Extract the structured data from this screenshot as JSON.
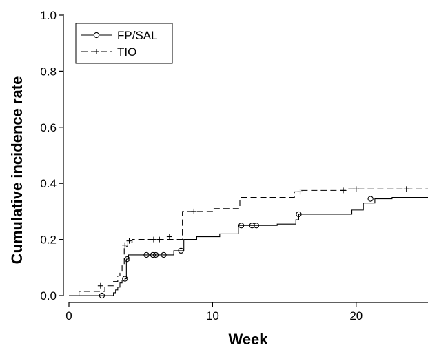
{
  "chart_data": {
    "type": "line",
    "xlabel": "Week",
    "ylabel": "Cumulative incidence rate",
    "xlim": [
      0,
      25
    ],
    "ylim": [
      0,
      1.0
    ],
    "x_ticks": [
      "0",
      "10",
      "20"
    ],
    "x_tick_values": [
      0,
      10,
      20
    ],
    "y_ticks": [
      "0.0",
      "0.2",
      "0.4",
      "0.6",
      "0.8",
      "1.0"
    ],
    "y_tick_values": [
      0,
      0.2,
      0.4,
      0.6,
      0.8,
      1.0
    ],
    "grid": false,
    "legend_position": "top-left",
    "series": [
      {
        "name": "FP/SAL",
        "line_style": "solid",
        "marker": "circle",
        "color": "#000000",
        "steps": [
          [
            0,
            0
          ],
          [
            3.1,
            0.01
          ],
          [
            3.25,
            0.02
          ],
          [
            3.4,
            0.03
          ],
          [
            3.55,
            0.045
          ],
          [
            3.7,
            0.055
          ],
          [
            3.9,
            0.06
          ],
          [
            4.0,
            0.13
          ],
          [
            4.15,
            0.145
          ],
          [
            7.3,
            0.16
          ],
          [
            8.0,
            0.2
          ],
          [
            8.9,
            0.21
          ],
          [
            10.5,
            0.22
          ],
          [
            11.8,
            0.25
          ],
          [
            14.5,
            0.255
          ],
          [
            15.8,
            0.27
          ],
          [
            16.0,
            0.29
          ],
          [
            19.7,
            0.305
          ],
          [
            20.5,
            0.33
          ],
          [
            21.3,
            0.345
          ],
          [
            22.5,
            0.35
          ],
          [
            25,
            0.35
          ]
        ],
        "censored": [
          [
            2.3,
            0.0
          ],
          [
            3.9,
            0.06
          ],
          [
            4.05,
            0.13
          ],
          [
            5.4,
            0.145
          ],
          [
            5.85,
            0.145
          ],
          [
            6.05,
            0.145
          ],
          [
            6.6,
            0.145
          ],
          [
            7.8,
            0.16
          ],
          [
            12.0,
            0.25
          ],
          [
            12.75,
            0.25
          ],
          [
            13.05,
            0.25
          ],
          [
            16.0,
            0.29
          ],
          [
            21.0,
            0.345
          ]
        ]
      },
      {
        "name": "TIO",
        "line_style": "dashed",
        "marker": "plus",
        "color": "#000000",
        "steps": [
          [
            0,
            0
          ],
          [
            0.7,
            0.015
          ],
          [
            2.5,
            0.035
          ],
          [
            3.1,
            0.05
          ],
          [
            3.4,
            0.07
          ],
          [
            3.55,
            0.08
          ],
          [
            3.7,
            0.11
          ],
          [
            3.85,
            0.175
          ],
          [
            4.1,
            0.19
          ],
          [
            4.4,
            0.2
          ],
          [
            7.9,
            0.3
          ],
          [
            10.1,
            0.31
          ],
          [
            11.9,
            0.35
          ],
          [
            15.7,
            0.37
          ],
          [
            16.2,
            0.375
          ],
          [
            19.3,
            0.38
          ],
          [
            25,
            0.38
          ]
        ],
        "censored": [
          [
            2.2,
            0.035
          ],
          [
            3.9,
            0.18
          ],
          [
            4.2,
            0.195
          ],
          [
            5.9,
            0.2
          ],
          [
            6.3,
            0.2
          ],
          [
            7.0,
            0.21
          ],
          [
            8.7,
            0.3
          ],
          [
            16.1,
            0.37
          ],
          [
            19.1,
            0.375
          ],
          [
            20.0,
            0.38
          ],
          [
            23.5,
            0.38
          ]
        ]
      }
    ]
  }
}
